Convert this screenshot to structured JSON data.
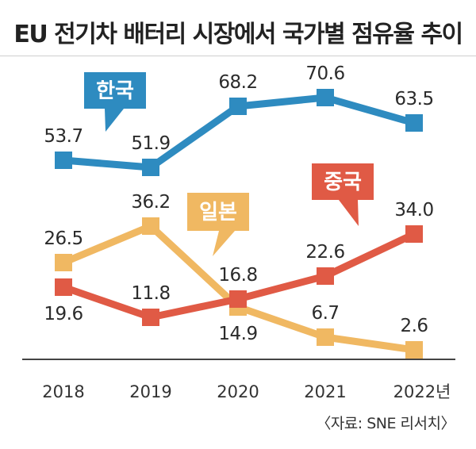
{
  "chart_data": {
    "type": "line",
    "title": "EU 전기차 배터리 시장에서 국가별 점유율 추이",
    "categories": [
      "2018",
      "2019",
      "2020",
      "2021",
      "2022년"
    ],
    "ylim": [
      0,
      80
    ],
    "grid": false,
    "series": [
      {
        "name": "한국",
        "color": "#2e8bc0",
        "values": [
          53.7,
          51.9,
          68.2,
          70.6,
          63.5
        ]
      },
      {
        "name": "일본",
        "color": "#f0b862",
        "values": [
          26.5,
          36.2,
          14.9,
          6.7,
          2.6
        ]
      },
      {
        "name": "중국",
        "color": "#e05a45",
        "values": [
          19.6,
          11.8,
          16.8,
          22.6,
          34.0
        ]
      }
    ],
    "value_labels": {
      "한국": [
        "53.7",
        "51.9",
        "68.2",
        "70.6",
        "63.5"
      ],
      "일본": [
        "26.5",
        "36.2",
        "14.9",
        "6.7",
        "2.6"
      ],
      "중국": [
        "19.6",
        "11.8",
        "16.8",
        "22.6",
        "34.0"
      ]
    },
    "source": "〈자료: SNE 리서치〉"
  }
}
